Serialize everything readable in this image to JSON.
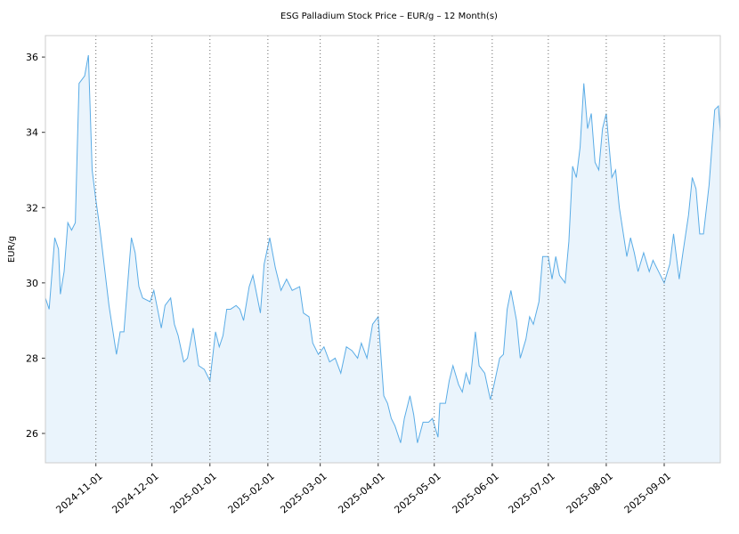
{
  "chart_data": {
    "type": "line",
    "title": "ESG Palladium Stock Price – EUR/g – 12 Month(s)",
    "ylabel": "EUR/g",
    "x": [
      "2024-10-05",
      "2024-10-07",
      "2024-10-10",
      "2024-10-12",
      "2024-10-13",
      "2024-10-15",
      "2024-10-17",
      "2024-10-19",
      "2024-10-21",
      "2024-10-22",
      "2024-10-23",
      "2024-10-26",
      "2024-10-28",
      "2024-10-30",
      "2024-11-01",
      "2024-11-03",
      "2024-11-08",
      "2024-11-12",
      "2024-11-14",
      "2024-11-16",
      "2024-11-19",
      "2024-11-20",
      "2024-11-22",
      "2024-11-24",
      "2024-11-26",
      "2024-11-30",
      "2024-12-02",
      "2024-12-04",
      "2024-12-06",
      "2024-12-08",
      "2024-12-11",
      "2024-12-13",
      "2024-12-15",
      "2024-12-18",
      "2024-12-20",
      "2024-12-23",
      "2024-12-26",
      "2024-12-29",
      "2025-01-01",
      "2025-01-04",
      "2025-01-06",
      "2025-01-08",
      "2025-01-10",
      "2025-01-12",
      "2025-01-15",
      "2025-01-17",
      "2025-01-19",
      "2025-01-22",
      "2025-01-24",
      "2025-01-28",
      "2025-01-30",
      "2025-02-02",
      "2025-02-05",
      "2025-02-08",
      "2025-02-11",
      "2025-02-14",
      "2025-02-18",
      "2025-02-20",
      "2025-02-23",
      "2025-02-25",
      "2025-02-28",
      "2025-03-03",
      "2025-03-06",
      "2025-03-09",
      "2025-03-12",
      "2025-03-15",
      "2025-03-18",
      "2025-03-21",
      "2025-03-23",
      "2025-03-26",
      "2025-03-29",
      "2025-04-01",
      "2025-04-04",
      "2025-04-06",
      "2025-04-08",
      "2025-04-10",
      "2025-04-13",
      "2025-04-15",
      "2025-04-18",
      "2025-04-20",
      "2025-04-22",
      "2025-04-25",
      "2025-04-28",
      "2025-04-30",
      "2025-05-03",
      "2025-05-04",
      "2025-05-07",
      "2025-05-09",
      "2025-05-11",
      "2025-05-14",
      "2025-05-16",
      "2025-05-18",
      "2025-05-20",
      "2025-05-23",
      "2025-05-25",
      "2025-05-28",
      "2025-05-31",
      "2025-06-02",
      "2025-06-05",
      "2025-06-07",
      "2025-06-09",
      "2025-06-11",
      "2025-06-14",
      "2025-06-16",
      "2025-06-19",
      "2025-06-21",
      "2025-06-23",
      "2025-06-26",
      "2025-06-28",
      "2025-07-01",
      "2025-07-03",
      "2025-07-05",
      "2025-07-07",
      "2025-07-10",
      "2025-07-12",
      "2025-07-14",
      "2025-07-16",
      "2025-07-18",
      "2025-07-20",
      "2025-07-22",
      "2025-07-24",
      "2025-07-26",
      "2025-07-28",
      "2025-07-30",
      "2025-08-01",
      "2025-08-04",
      "2025-08-06",
      "2025-08-08",
      "2025-08-12",
      "2025-08-14",
      "2025-08-16",
      "2025-08-18",
      "2025-08-21",
      "2025-08-24",
      "2025-08-26",
      "2025-08-29",
      "2025-09-01",
      "2025-09-04",
      "2025-09-06",
      "2025-09-09",
      "2025-09-11",
      "2025-09-14",
      "2025-09-16",
      "2025-09-18",
      "2025-09-20",
      "2025-09-22",
      "2025-09-25",
      "2025-09-28",
      "2025-09-30",
      "2025-10-01"
    ],
    "values": [
      29.6,
      29.3,
      31.2,
      30.9,
      29.7,
      30.3,
      31.6,
      31.4,
      31.6,
      33.5,
      35.3,
      35.5,
      36.05,
      33.0,
      32.2,
      31.5,
      29.4,
      28.1,
      28.7,
      28.7,
      30.6,
      31.2,
      30.8,
      29.9,
      29.6,
      29.5,
      29.8,
      29.3,
      28.8,
      29.4,
      29.6,
      28.9,
      28.6,
      27.9,
      28.0,
      28.8,
      27.8,
      27.7,
      27.4,
      28.7,
      28.3,
      28.6,
      29.3,
      29.3,
      29.4,
      29.3,
      29.0,
      29.9,
      30.2,
      29.2,
      30.5,
      31.2,
      30.4,
      29.8,
      30.1,
      29.8,
      29.9,
      29.2,
      29.1,
      28.4,
      28.1,
      28.3,
      27.9,
      28.0,
      27.6,
      28.3,
      28.2,
      28.0,
      28.4,
      28.0,
      28.9,
      29.1,
      27.0,
      26.8,
      26.4,
      26.2,
      25.75,
      26.4,
      27.0,
      26.5,
      25.75,
      26.3,
      26.3,
      26.4,
      25.9,
      26.8,
      26.8,
      27.4,
      27.8,
      27.3,
      27.1,
      27.6,
      27.3,
      28.7,
      27.8,
      27.6,
      26.9,
      27.3,
      28.0,
      28.1,
      29.3,
      29.8,
      29.0,
      28.0,
      28.5,
      29.1,
      28.9,
      29.5,
      30.7,
      30.7,
      30.1,
      30.7,
      30.2,
      30.0,
      31.1,
      33.1,
      32.8,
      33.6,
      35.3,
      34.1,
      34.5,
      33.2,
      33.0,
      34.1,
      34.5,
      32.8,
      33.0,
      32.0,
      30.7,
      31.2,
      30.8,
      30.3,
      30.8,
      30.3,
      30.6,
      30.3,
      30.0,
      30.5,
      31.3,
      30.1,
      30.8,
      31.8,
      32.8,
      32.5,
      31.3,
      31.3,
      32.6,
      34.6,
      34.7,
      34.0
    ],
    "color": "#5aace6",
    "fill": "#eaf4fc",
    "xlim": [
      "2024-10-05",
      "2025-10-01"
    ],
    "xticks": [
      "2024-11-01",
      "2024-12-01",
      "2025-01-01",
      "2025-02-01",
      "2025-03-01",
      "2025-04-01",
      "2025-05-01",
      "2025-06-01",
      "2025-07-01",
      "2025-08-01",
      "2025-09-01"
    ],
    "ylim": [
      25.22,
      36.57
    ],
    "yticks": [
      26,
      28,
      30,
      32,
      34,
      36
    ],
    "grid": true
  }
}
